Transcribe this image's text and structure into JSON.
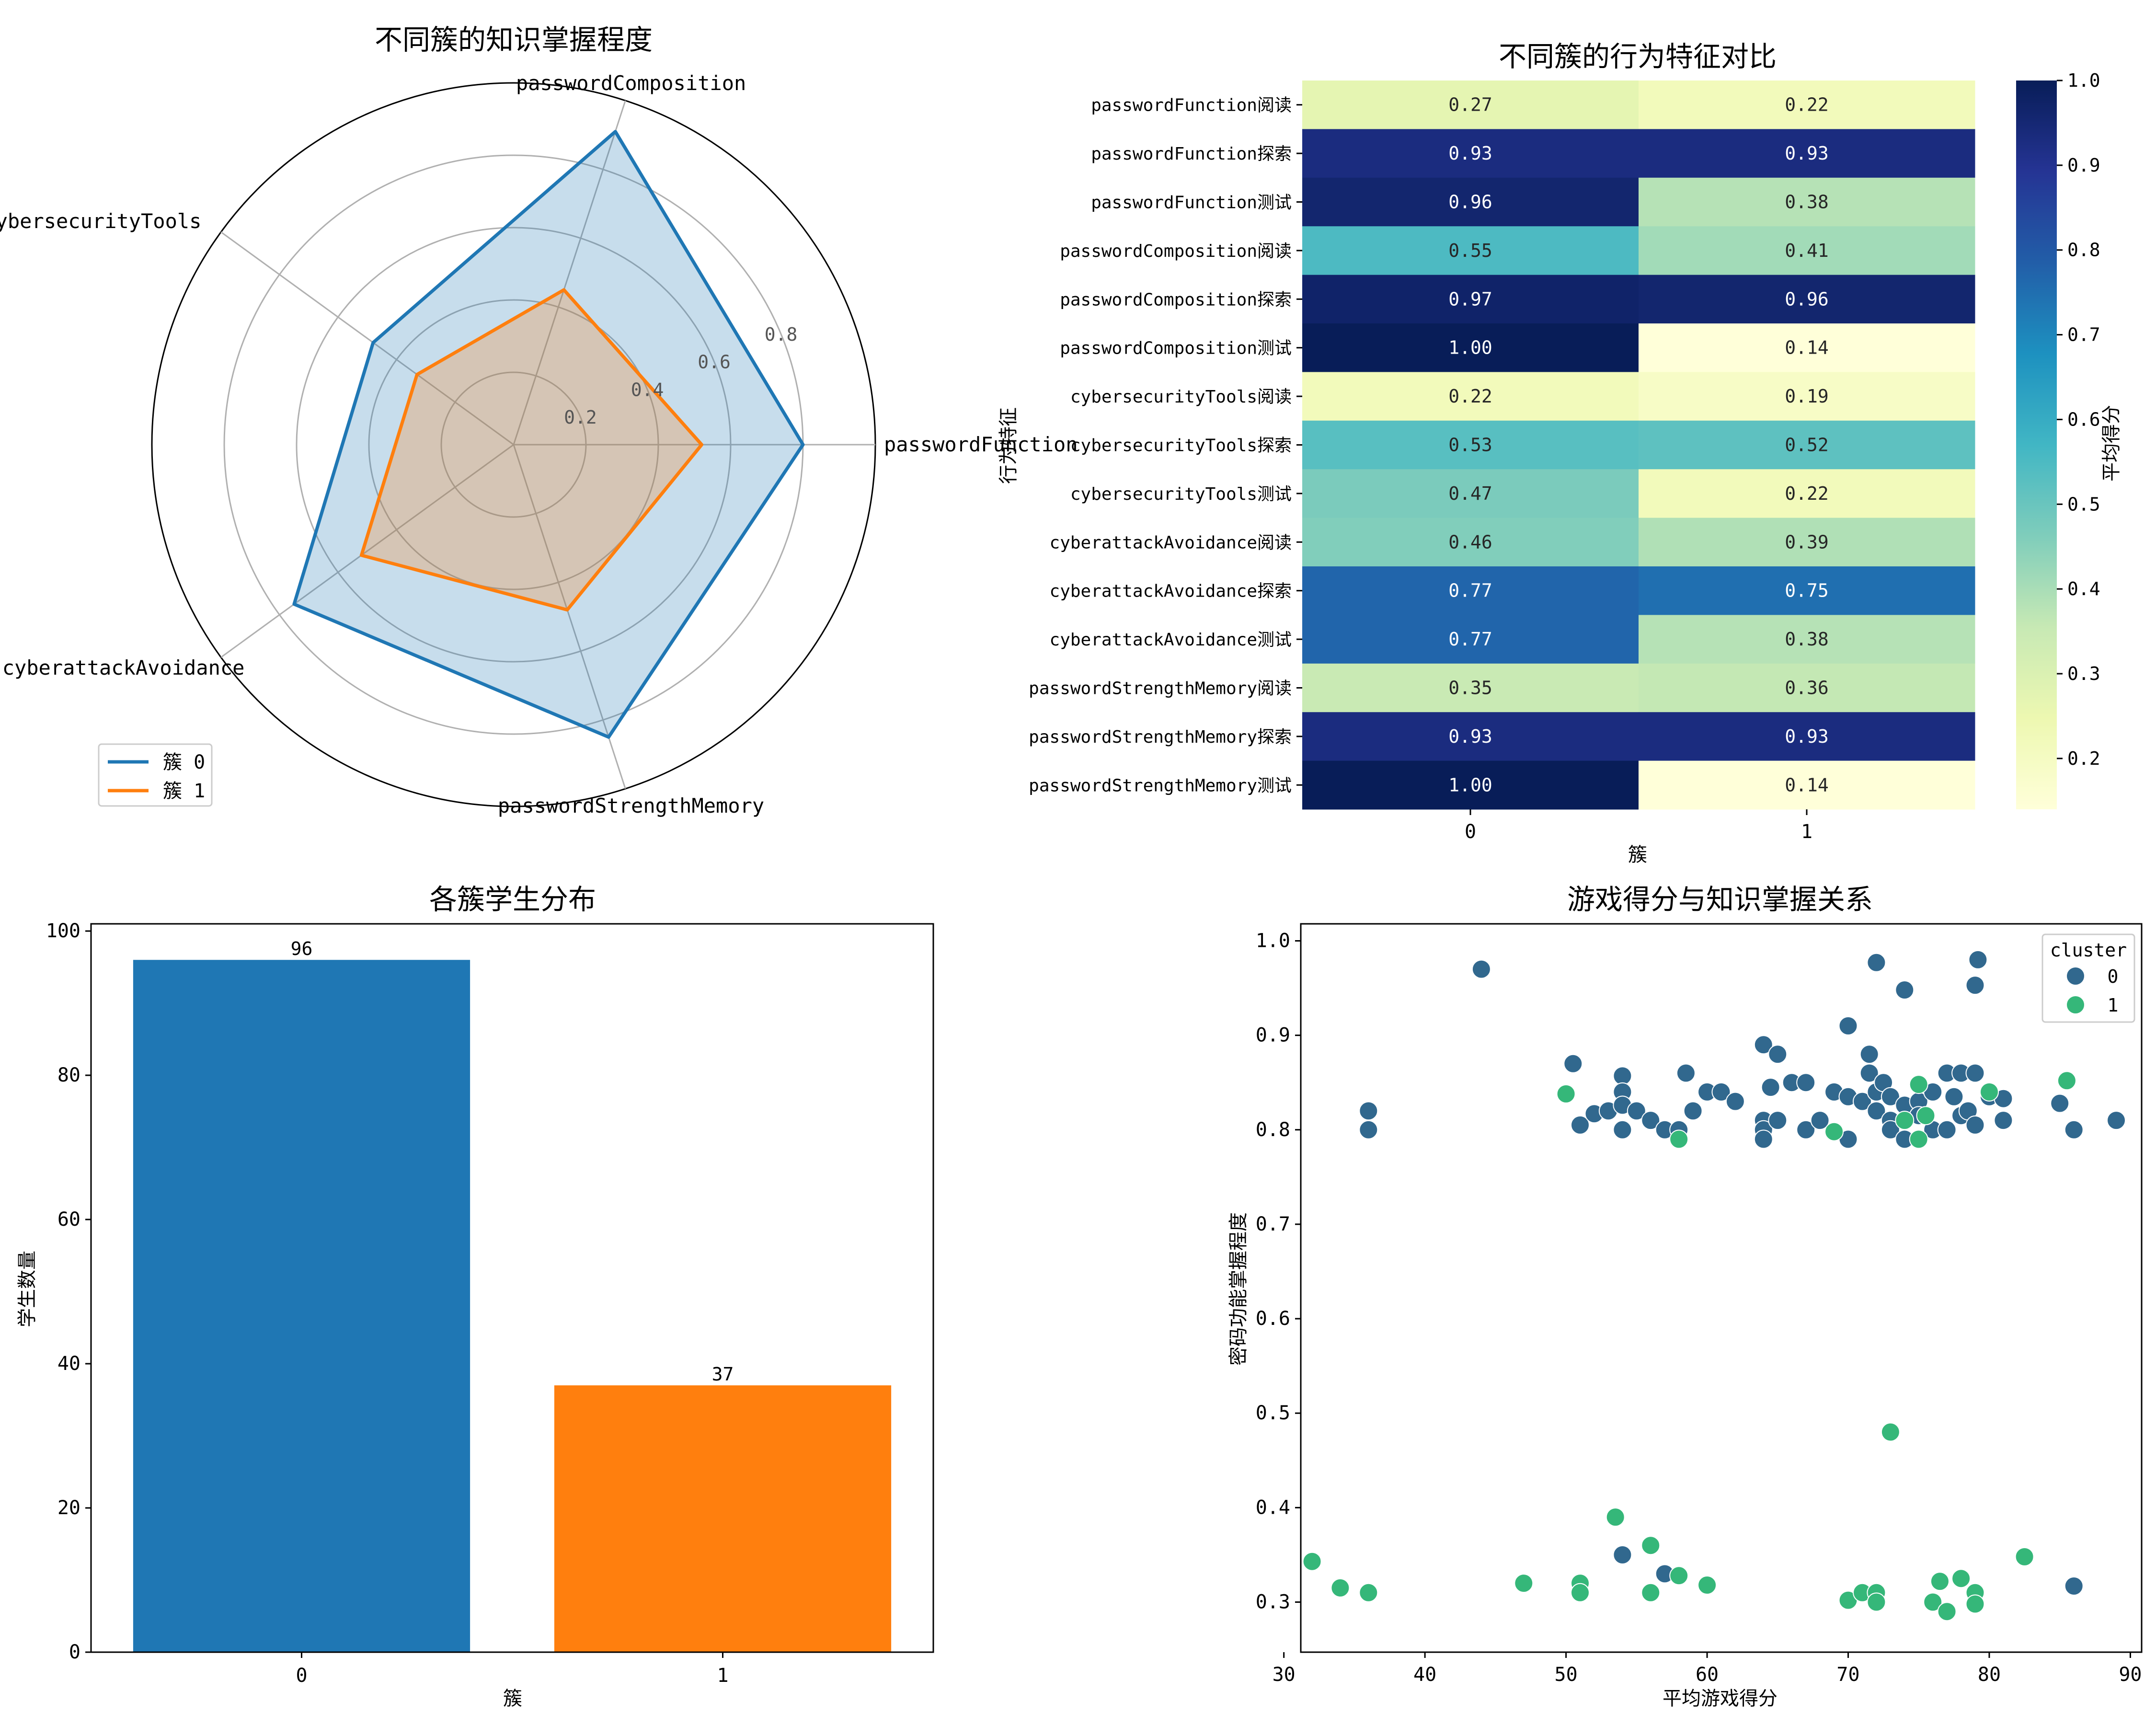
{
  "chart_data": [
    {
      "type": "radar",
      "title": "不同簇的知识掌握程度",
      "axes": [
        "passwordFunction",
        "passwordComposition",
        "cybersecurityTools",
        "cyberattackAvoidance",
        "passwordStrengthMemory"
      ],
      "rlim": [
        0,
        1.0
      ],
      "radial_ticks": [
        "0.2",
        "0.4",
        "0.6",
        "0.8"
      ],
      "radial_tick_values": [
        0.2,
        0.4,
        0.6,
        0.8
      ],
      "legend_location": "lower-left",
      "series": [
        {
          "name": "簇 0",
          "values": [
            0.8,
            0.91,
            0.48,
            0.75,
            0.85
          ],
          "color": "#1f77b4"
        },
        {
          "name": "簇 1",
          "values": [
            0.52,
            0.45,
            0.33,
            0.52,
            0.48
          ],
          "color": "#ff7f0e"
        }
      ]
    },
    {
      "type": "heatmap",
      "title": "不同簇的行为特征对比",
      "xlabel": "簇",
      "ylabel": "行为特征",
      "x_categories": [
        "0",
        "1"
      ],
      "y_categories": [
        "passwordFunction阅读",
        "passwordFunction探索",
        "passwordFunction测试",
        "passwordComposition阅读",
        "passwordComposition探索",
        "passwordComposition测试",
        "cybersecurityTools阅读",
        "cybersecurityTools探索",
        "cybersecurityTools测试",
        "cyberattackAvoidance阅读",
        "cyberattackAvoidance探索",
        "cyberattackAvoidance测试",
        "passwordStrengthMemory阅读",
        "passwordStrengthMemory探索",
        "passwordStrengthMemory测试"
      ],
      "values": [
        [
          0.27,
          0.22
        ],
        [
          0.93,
          0.93
        ],
        [
          0.96,
          0.38
        ],
        [
          0.55,
          0.41
        ],
        [
          0.97,
          0.96
        ],
        [
          1.0,
          0.14
        ],
        [
          0.22,
          0.19
        ],
        [
          0.53,
          0.52
        ],
        [
          0.47,
          0.22
        ],
        [
          0.46,
          0.39
        ],
        [
          0.77,
          0.75
        ],
        [
          0.77,
          0.38
        ],
        [
          0.35,
          0.36
        ],
        [
          0.93,
          0.93
        ],
        [
          1.0,
          0.14
        ]
      ],
      "annotations": [
        [
          "0.27",
          "0.22"
        ],
        [
          "0.93",
          "0.93"
        ],
        [
          "0.96",
          "0.38"
        ],
        [
          "0.55",
          "0.41"
        ],
        [
          "0.97",
          "0.96"
        ],
        [
          "1.00",
          "0.14"
        ],
        [
          "0.22",
          "0.19"
        ],
        [
          "0.53",
          "0.52"
        ],
        [
          "0.47",
          "0.22"
        ],
        [
          "0.46",
          "0.39"
        ],
        [
          "0.77",
          "0.75"
        ],
        [
          "0.77",
          "0.38"
        ],
        [
          "0.35",
          "0.36"
        ],
        [
          "0.93",
          "0.93"
        ],
        [
          "1.00",
          "0.14"
        ]
      ],
      "colorbar": {
        "label": "平均得分",
        "range": [
          0.14,
          1.0
        ],
        "ticks": [
          "0.2",
          "0.3",
          "0.4",
          "0.5",
          "0.6",
          "0.7",
          "0.8",
          "0.9",
          "1.0"
        ],
        "tick_values": [
          0.2,
          0.3,
          0.4,
          0.5,
          0.6,
          0.7,
          0.8,
          0.9,
          1.0
        ],
        "colormap": "YlGnBu"
      }
    },
    {
      "type": "bar",
      "title": "各簇学生分布",
      "xlabel": "簇",
      "ylabel": "学生数量",
      "categories": [
        "0",
        "1"
      ],
      "values": [
        96,
        37
      ],
      "value_labels": [
        "96",
        "37"
      ],
      "colors": [
        "#1f77b4",
        "#ff7f0e"
      ],
      "ylim": [
        0,
        101
      ],
      "yticks": [
        "0",
        "20",
        "40",
        "60",
        "80",
        "100"
      ],
      "ytick_values": [
        0,
        20,
        40,
        60,
        80,
        100
      ]
    },
    {
      "type": "scatter",
      "title": "游戏得分与知识掌握关系",
      "xlabel": "平均游戏得分",
      "ylabel": "密码功能掌握程度",
      "xlim": [
        31.2,
        90.8
      ],
      "ylim": [
        0.247,
        1.018
      ],
      "xticks": [
        "30",
        "40",
        "50",
        "60",
        "70",
        "80",
        "90"
      ],
      "xtick_values": [
        30,
        40,
        50,
        60,
        70,
        80,
        90
      ],
      "yticks": [
        "0.3",
        "0.4",
        "0.5",
        "0.6",
        "0.7",
        "0.8",
        "0.9",
        "1.0"
      ],
      "ytick_values": [
        0.3,
        0.4,
        0.5,
        0.6,
        0.7,
        0.8,
        0.9,
        1.0
      ],
      "legend_title": "cluster",
      "legend_location": "top-right",
      "series": [
        {
          "name": "0",
          "color": "#31688e",
          "points": [
            [
              36,
              0.82
            ],
            [
              36,
              0.8
            ],
            [
              44,
              0.97
            ],
            [
              50.5,
              0.87
            ],
            [
              51,
              0.805
            ],
            [
              52,
              0.817
            ],
            [
              53,
              0.82
            ],
            [
              54,
              0.857
            ],
            [
              54,
              0.84
            ],
            [
              54,
              0.826
            ],
            [
              54,
              0.8
            ],
            [
              55,
              0.82
            ],
            [
              56,
              0.81
            ],
            [
              57,
              0.8
            ],
            [
              58,
              0.8
            ],
            [
              58.5,
              0.86
            ],
            [
              59,
              0.82
            ],
            [
              60,
              0.84
            ],
            [
              61,
              0.84
            ],
            [
              62,
              0.83
            ],
            [
              64,
              0.89
            ],
            [
              64,
              0.81
            ],
            [
              64,
              0.8
            ],
            [
              64,
              0.79
            ],
            [
              64.5,
              0.845
            ],
            [
              65,
              0.88
            ],
            [
              65,
              0.81
            ],
            [
              66,
              0.85
            ],
            [
              67,
              0.85
            ],
            [
              67,
              0.8
            ],
            [
              68,
              0.81
            ],
            [
              69,
              0.84
            ],
            [
              70,
              0.91
            ],
            [
              70,
              0.835
            ],
            [
              70,
              0.79
            ],
            [
              71,
              0.83
            ],
            [
              71.5,
              0.88
            ],
            [
              71.5,
              0.86
            ],
            [
              72,
              0.977
            ],
            [
              72,
              0.84
            ],
            [
              72,
              0.82
            ],
            [
              72.5,
              0.85
            ],
            [
              73,
              0.835
            ],
            [
              73,
              0.81
            ],
            [
              73,
              0.8
            ],
            [
              74,
              0.948
            ],
            [
              74,
              0.826
            ],
            [
              74,
              0.81
            ],
            [
              74,
              0.79
            ],
            [
              75,
              0.83
            ],
            [
              75,
              0.815
            ],
            [
              76,
              0.84
            ],
            [
              76,
              0.8
            ],
            [
              77,
              0.86
            ],
            [
              77,
              0.8
            ],
            [
              77.5,
              0.835
            ],
            [
              78,
              0.86
            ],
            [
              78,
              0.815
            ],
            [
              78.5,
              0.82
            ],
            [
              79,
              0.953
            ],
            [
              79,
              0.86
            ],
            [
              79,
              0.805
            ],
            [
              79.2,
              0.98
            ],
            [
              80,
              0.835
            ],
            [
              81,
              0.833
            ],
            [
              81,
              0.81
            ],
            [
              85,
              0.828
            ],
            [
              86,
              0.8
            ],
            [
              89,
              0.81
            ],
            [
              54,
              0.35
            ],
            [
              57,
              0.33
            ],
            [
              86,
              0.317
            ]
          ]
        },
        {
          "name": "1",
          "color": "#35b779",
          "points": [
            [
              32,
              0.343
            ],
            [
              34,
              0.315
            ],
            [
              36,
              0.31
            ],
            [
              47,
              0.32
            ],
            [
              50,
              0.838
            ],
            [
              51,
              0.32
            ],
            [
              51,
              0.31
            ],
            [
              53.5,
              0.39
            ],
            [
              56,
              0.36
            ],
            [
              56,
              0.31
            ],
            [
              58,
              0.79
            ],
            [
              58,
              0.328
            ],
            [
              60,
              0.318
            ],
            [
              69,
              0.798
            ],
            [
              70,
              0.302
            ],
            [
              71,
              0.31
            ],
            [
              72,
              0.31
            ],
            [
              72,
              0.3
            ],
            [
              73,
              0.48
            ],
            [
              74,
              0.81
            ],
            [
              75,
              0.848
            ],
            [
              75,
              0.79
            ],
            [
              75.5,
              0.815
            ],
            [
              76,
              0.3
            ],
            [
              76.5,
              0.322
            ],
            [
              77,
              0.29
            ],
            [
              78,
              0.325
            ],
            [
              79,
              0.31
            ],
            [
              79,
              0.298
            ],
            [
              80,
              0.84
            ],
            [
              82.5,
              0.348
            ],
            [
              85.5,
              0.852
            ]
          ]
        }
      ]
    }
  ]
}
